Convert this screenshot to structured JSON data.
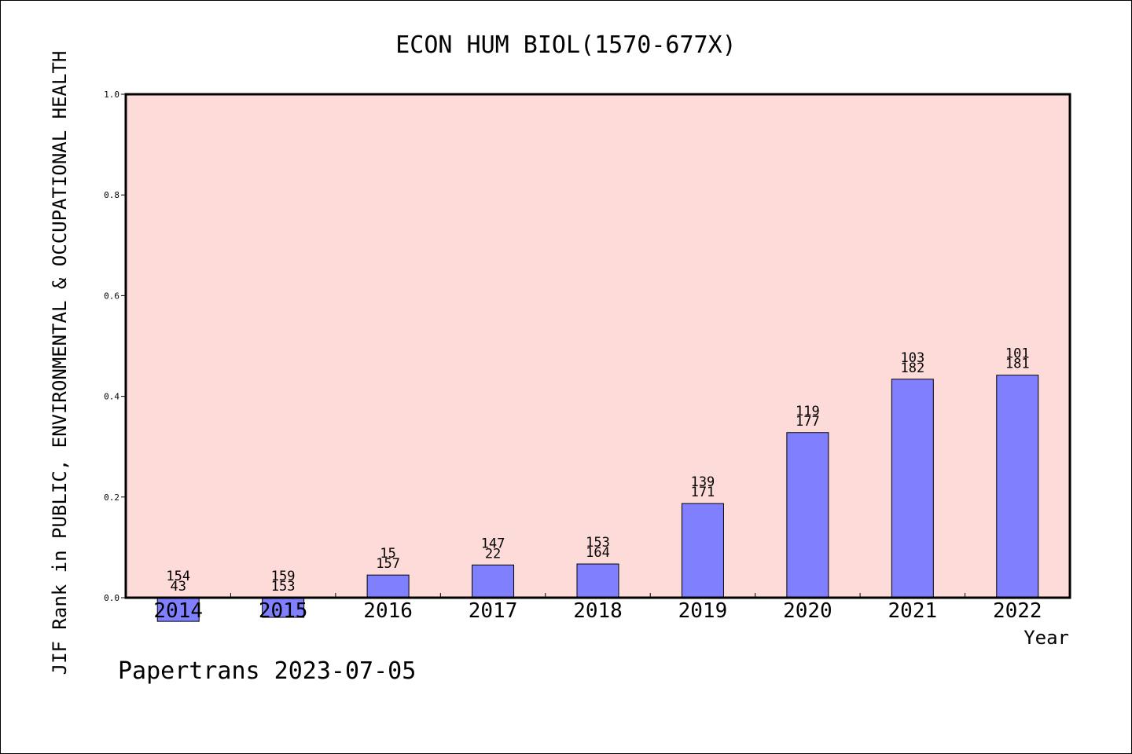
{
  "chart_data": {
    "type": "bar",
    "title": "ECON HUM BIOL(1570-677X)",
    "xlabel": "Year",
    "ylabel": "JIF Rank in PUBLIC, ENVIRONMENTAL & OCCUPATIONAL HEALTH",
    "ylim": [
      0,
      1
    ],
    "yticks": [
      "0.0",
      "0.2",
      "0.4",
      "0.6",
      "0.8",
      "1.0"
    ],
    "categories": [
      "2014",
      "2015",
      "2016",
      "2017",
      "2018",
      "2019",
      "2020",
      "2021",
      "2022"
    ],
    "values": [
      -0.047,
      -0.039,
      0.045,
      0.065,
      0.067,
      0.187,
      0.328,
      0.434,
      0.442
    ],
    "labels_top": [
      "154",
      "159",
      "15",
      "147",
      "153",
      "139",
      "119",
      "103",
      "101"
    ],
    "labels_bottom": [
      "43",
      "153",
      "157",
      "22",
      "164",
      "171",
      "177",
      "182",
      "181"
    ],
    "colors": {
      "bar": "#8080ff",
      "plot_bg": "#fddbd8"
    },
    "grid": false
  },
  "footer": {
    "watermark": "Papertrans 2023-07-05"
  }
}
